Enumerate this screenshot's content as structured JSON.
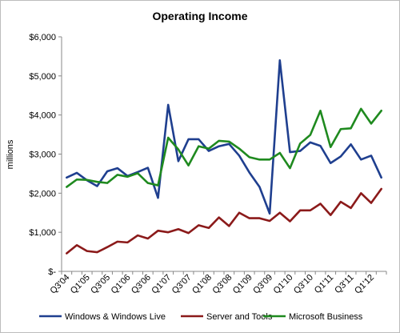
{
  "chart_data": {
    "type": "line",
    "title": "Operating Income",
    "xlabel": "",
    "ylabel": "millions",
    "ylim": [
      0,
      6000
    ],
    "yticks": [
      0,
      1000,
      2000,
      3000,
      4000,
      5000,
      6000
    ],
    "ytick_labels": [
      "$-",
      "$1,000",
      "$2,000",
      "$3,000",
      "$4,000",
      "$5,000",
      "$6,000"
    ],
    "grid": false,
    "legend_position": "bottom",
    "categories": [
      "Q3'04",
      "Q4'04",
      "Q1'05",
      "Q2'05",
      "Q3'05",
      "Q4'05",
      "Q1'06",
      "Q2'06",
      "Q3'06",
      "Q4'06",
      "Q1'07",
      "Q2'07",
      "Q3'07",
      "Q4'07",
      "Q1'08",
      "Q2'08",
      "Q3'08",
      "Q4'08",
      "Q1'09",
      "Q2'09",
      "Q3'09",
      "Q4'09",
      "Q1'10",
      "Q2'10",
      "Q3'10",
      "Q4'10",
      "Q1'11",
      "Q2'11",
      "Q3'11",
      "Q4'11",
      "Q1'12",
      "Q2'12"
    ],
    "xtick_labels": [
      "Q3'04",
      "",
      "Q1'05",
      "",
      "Q3'05",
      "",
      "Q1'06",
      "",
      "Q3'06",
      "",
      "Q1'07",
      "",
      "Q3'07",
      "",
      "Q1'08",
      "",
      "Q3'08",
      "",
      "Q1'09",
      "",
      "Q3'09",
      "",
      "Q1'10",
      "",
      "Q3'10",
      "",
      "Q1'11",
      "",
      "Q3'11",
      "",
      "Q1'12",
      ""
    ],
    "series": [
      {
        "name": "Windows & Windows Live",
        "color": "#1f3f8f",
        "values": [
          2400,
          2520,
          2330,
          2180,
          2560,
          2640,
          2440,
          2540,
          2650,
          1880,
          4260,
          2820,
          3380,
          3380,
          3080,
          3200,
          3260,
          2960,
          2530,
          2160,
          1480,
          5400,
          3050,
          3080,
          3300,
          3210,
          2770,
          2940,
          3250,
          2860,
          2960,
          2400
        ]
      },
      {
        "name": "Server and Tools",
        "color": "#8b1a1a",
        "values": [
          460,
          670,
          520,
          490,
          620,
          760,
          740,
          920,
          840,
          1040,
          1000,
          1080,
          980,
          1180,
          1110,
          1380,
          1160,
          1500,
          1360,
          1360,
          1290,
          1500,
          1280,
          1560,
          1560,
          1730,
          1440,
          1780,
          1620,
          2000,
          1750,
          2110
        ]
      },
      {
        "name": "Microsoft Business",
        "color": "#1f8a1f",
        "values": [
          2160,
          2350,
          2340,
          2290,
          2260,
          2470,
          2420,
          2510,
          2260,
          2200,
          3420,
          3120,
          2710,
          3200,
          3140,
          3340,
          3320,
          3140,
          2920,
          2860,
          2860,
          3030,
          2640,
          3270,
          3490,
          4110,
          3180,
          3640,
          3660,
          4160,
          3780,
          4110
        ]
      }
    ]
  }
}
